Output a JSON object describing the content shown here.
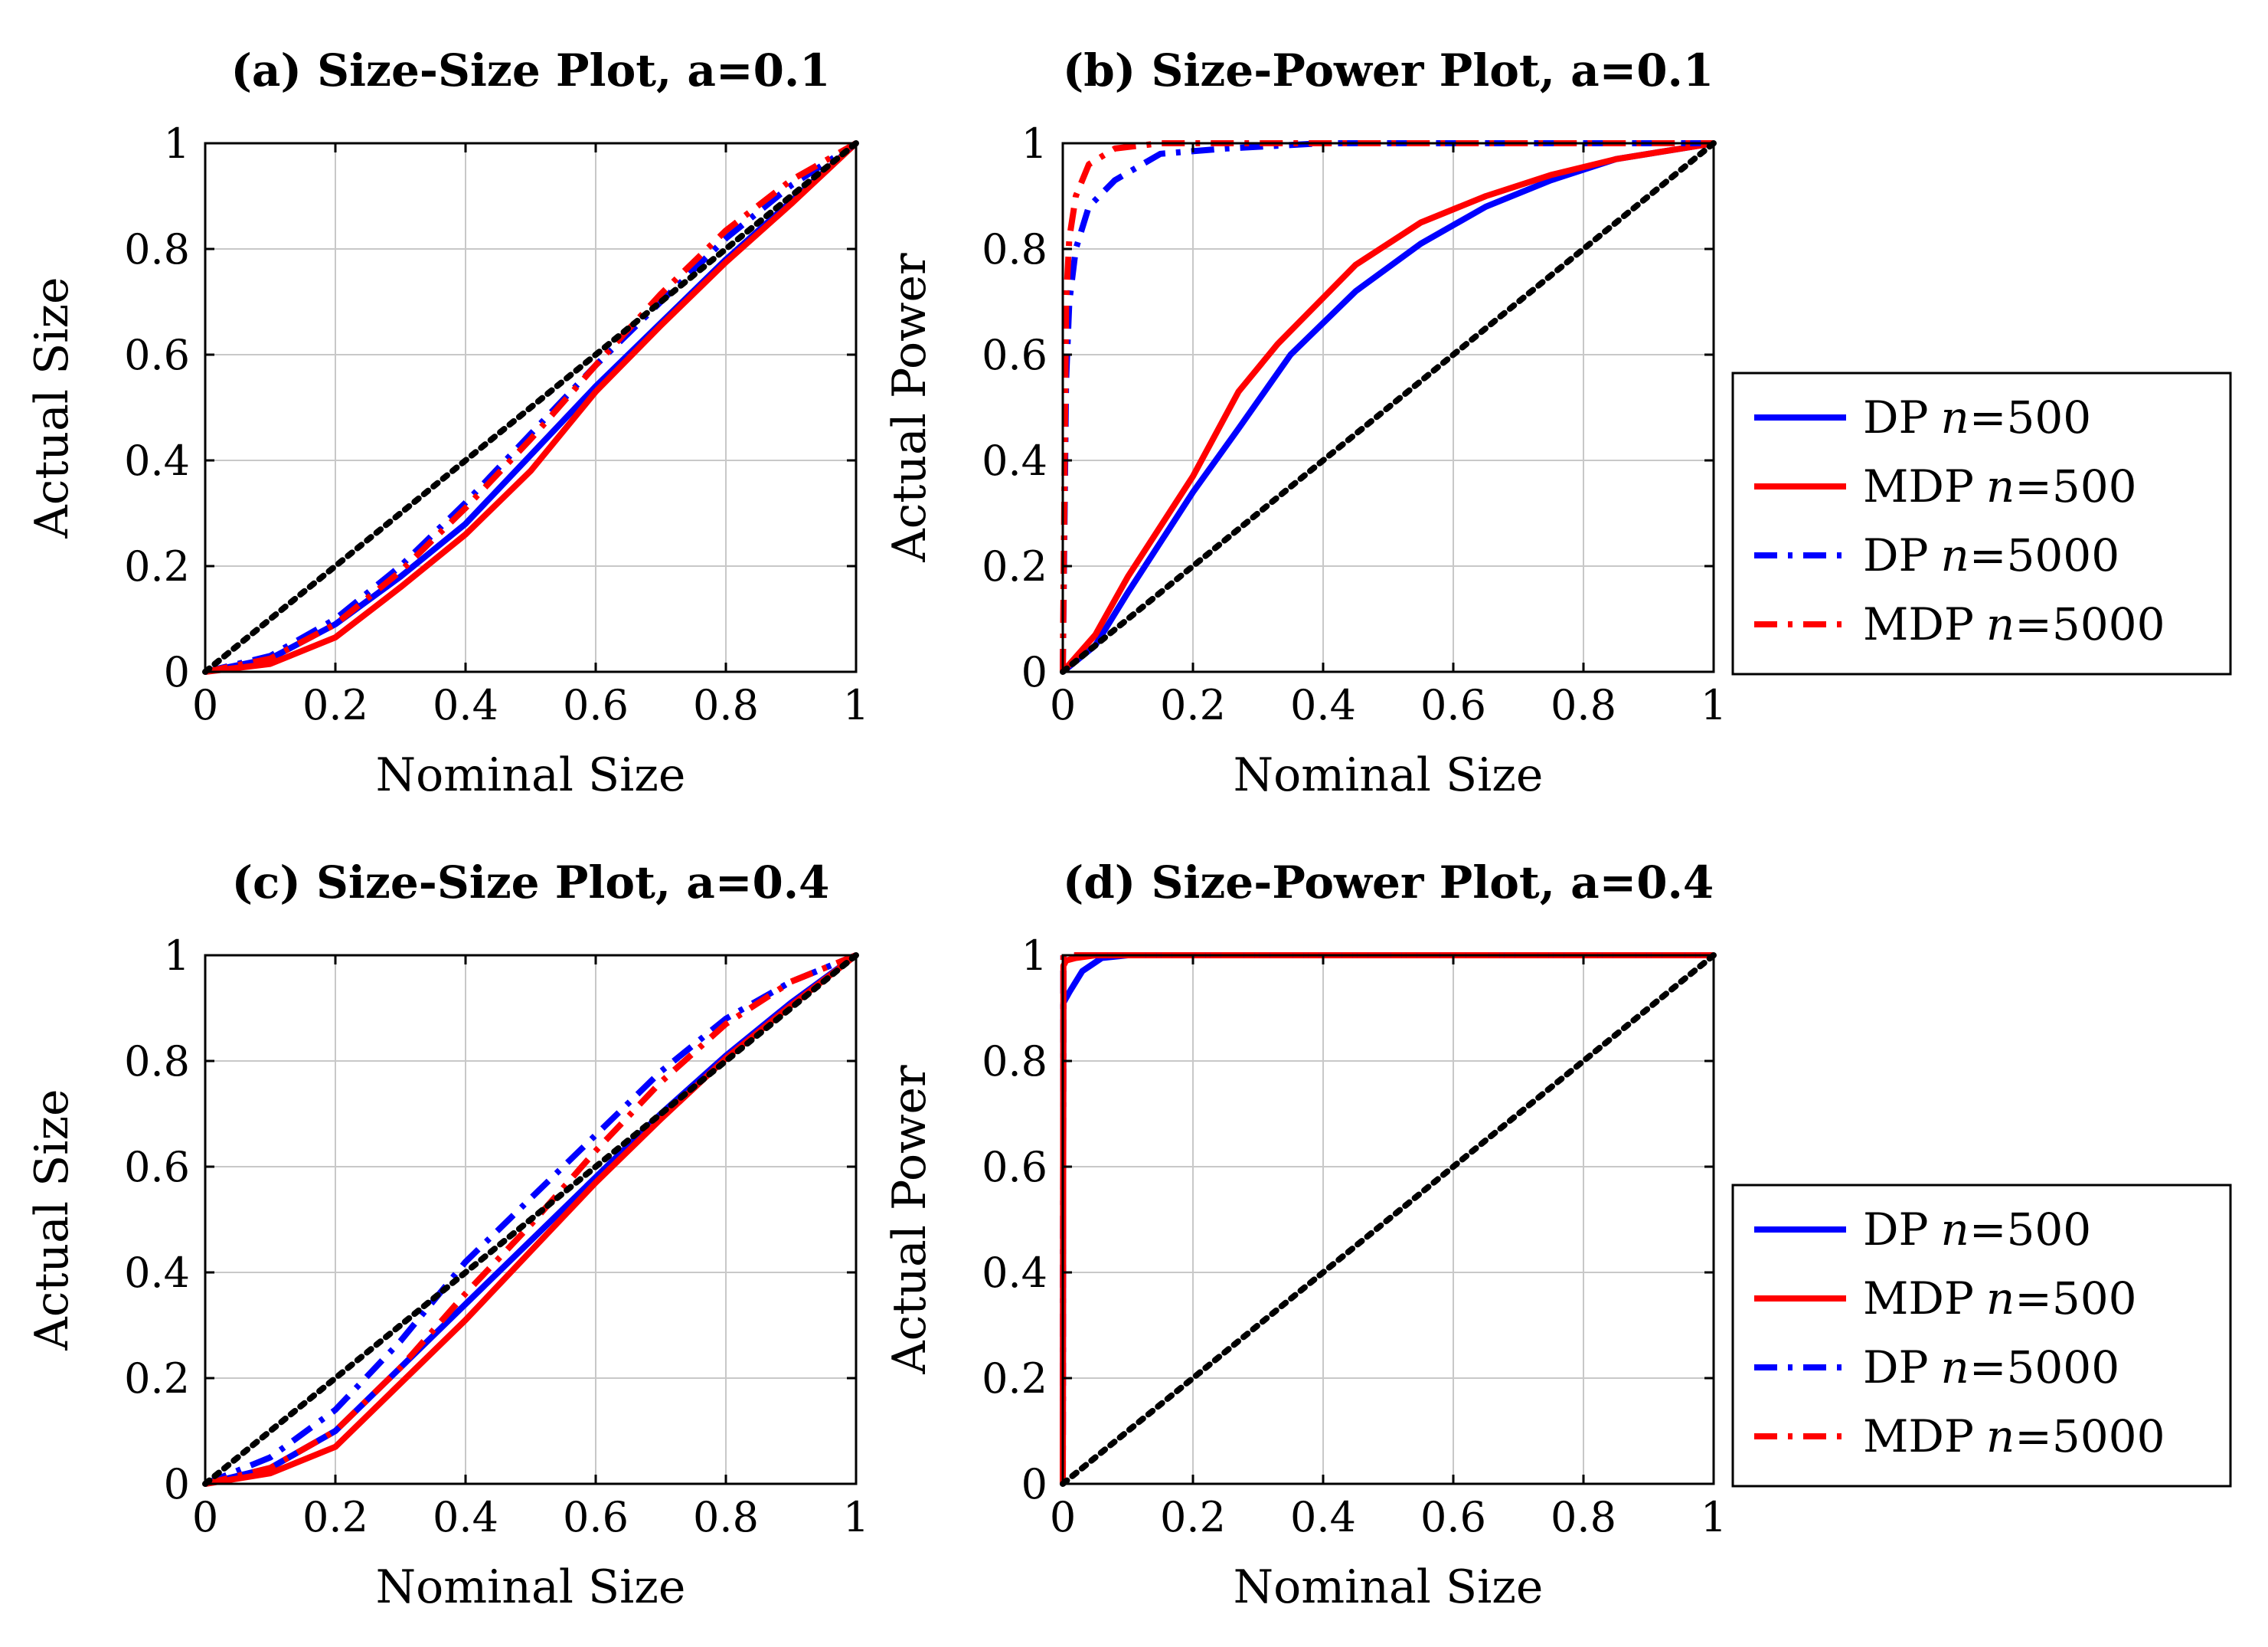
{
  "figure": {
    "legend_position": "right of right-hand panels"
  },
  "chart_data": [
    {
      "id": "a",
      "type": "line",
      "title": "(a) Size-Size Plot, a=0.1",
      "xlabel": "Nominal Size",
      "ylabel": "Actual Size",
      "xlim": [
        0,
        1
      ],
      "ylim": [
        0,
        1
      ],
      "xticks": [
        "0",
        "0.2",
        "0.4",
        "0.6",
        "0.8",
        "1"
      ],
      "yticks": [
        "0",
        "0.2",
        "0.4",
        "0.6",
        "0.8",
        "1"
      ],
      "legend": null,
      "series": [
        {
          "name": "DP n=500",
          "color": "#0000ff",
          "dash": "solid",
          "x": [
            0,
            0.1,
            0.2,
            0.3,
            0.4,
            0.5,
            0.6,
            0.7,
            0.8,
            0.9,
            1
          ],
          "y": [
            0,
            0.025,
            0.09,
            0.18,
            0.28,
            0.41,
            0.54,
            0.66,
            0.78,
            0.89,
            1
          ]
        },
        {
          "name": "MDP n=500",
          "color": "#ff0000",
          "dash": "solid",
          "x": [
            0,
            0.1,
            0.2,
            0.3,
            0.4,
            0.5,
            0.6,
            0.7,
            0.8,
            0.9,
            1
          ],
          "y": [
            0,
            0.015,
            0.065,
            0.16,
            0.26,
            0.38,
            0.53,
            0.655,
            0.775,
            0.885,
            1
          ]
        },
        {
          "name": "DP n=5000",
          "color": "#0000ff",
          "dash": "dashdot",
          "x": [
            0,
            0.1,
            0.2,
            0.3,
            0.4,
            0.5,
            0.6,
            0.7,
            0.8,
            0.9,
            1
          ],
          "y": [
            0,
            0.03,
            0.1,
            0.2,
            0.32,
            0.45,
            0.58,
            0.7,
            0.82,
            0.92,
            1
          ]
        },
        {
          "name": "MDP n=5000",
          "color": "#ff0000",
          "dash": "dashdot",
          "x": [
            0,
            0.1,
            0.2,
            0.3,
            0.4,
            0.5,
            0.6,
            0.7,
            0.8,
            0.9,
            1
          ],
          "y": [
            0,
            0.025,
            0.09,
            0.19,
            0.31,
            0.44,
            0.58,
            0.715,
            0.835,
            0.93,
            1
          ]
        },
        {
          "name": "45-degree",
          "color": "#000000",
          "dash": "dotted",
          "x": [
            0,
            1
          ],
          "y": [
            0,
            1
          ]
        }
      ]
    },
    {
      "id": "b",
      "type": "line",
      "title": "(b) Size-Power Plot, a=0.1",
      "xlabel": "Nominal Size",
      "ylabel": "Actual Power",
      "xlim": [
        0,
        1
      ],
      "ylim": [
        0,
        1
      ],
      "xticks": [
        "0",
        "0.2",
        "0.4",
        "0.6",
        "0.8",
        "1"
      ],
      "yticks": [
        "0",
        "0.2",
        "0.4",
        "0.6",
        "0.8",
        "1"
      ],
      "legend": "right",
      "series": [
        {
          "name": "DP n=500",
          "color": "#0000ff",
          "dash": "solid",
          "x": [
            0,
            0.05,
            0.1,
            0.2,
            0.27,
            0.35,
            0.45,
            0.55,
            0.65,
            0.75,
            0.85,
            0.95,
            1
          ],
          "y": [
            0,
            0.05,
            0.15,
            0.34,
            0.46,
            0.6,
            0.72,
            0.81,
            0.88,
            0.93,
            0.97,
            0.99,
            1
          ]
        },
        {
          "name": "MDP n=500",
          "color": "#ff0000",
          "dash": "solid",
          "x": [
            0,
            0.05,
            0.1,
            0.2,
            0.27,
            0.33,
            0.45,
            0.55,
            0.65,
            0.75,
            0.85,
            0.95,
            1
          ],
          "y": [
            0,
            0.07,
            0.18,
            0.37,
            0.53,
            0.62,
            0.77,
            0.85,
            0.9,
            0.94,
            0.97,
            0.99,
            1
          ]
        },
        {
          "name": "DP n=5000",
          "color": "#0000ff",
          "dash": "dashdot",
          "x": [
            0,
            0.005,
            0.01,
            0.02,
            0.04,
            0.08,
            0.15,
            0.25,
            0.4,
            0.6,
            0.8,
            1
          ],
          "y": [
            0,
            0.55,
            0.7,
            0.8,
            0.88,
            0.93,
            0.98,
            0.99,
            1,
            1,
            1,
            1
          ]
        },
        {
          "name": "MDP n=5000",
          "color": "#ff0000",
          "dash": "dashdot",
          "x": [
            0,
            0.005,
            0.01,
            0.02,
            0.04,
            0.08,
            0.15,
            0.3,
            0.5,
            0.7,
            1
          ],
          "y": [
            0,
            0.7,
            0.82,
            0.9,
            0.96,
            0.99,
            1,
            1,
            1,
            1,
            1
          ]
        },
        {
          "name": "45-degree",
          "color": "#000000",
          "dash": "dotted",
          "x": [
            0,
            1
          ],
          "y": [
            0,
            1
          ]
        }
      ]
    },
    {
      "id": "c",
      "type": "line",
      "title": "(c) Size-Size Plot, a=0.4",
      "xlabel": "Nominal Size",
      "ylabel": "Actual Size",
      "xlim": [
        0,
        1
      ],
      "ylim": [
        0,
        1
      ],
      "xticks": [
        "0",
        "0.2",
        "0.4",
        "0.6",
        "0.8",
        "1"
      ],
      "yticks": [
        "0",
        "0.2",
        "0.4",
        "0.6",
        "0.8",
        "1"
      ],
      "legend": null,
      "series": [
        {
          "name": "DP n=500",
          "color": "#0000ff",
          "dash": "solid",
          "x": [
            0,
            0.1,
            0.2,
            0.3,
            0.4,
            0.5,
            0.6,
            0.7,
            0.8,
            0.9,
            1
          ],
          "y": [
            0,
            0.03,
            0.1,
            0.22,
            0.34,
            0.46,
            0.58,
            0.7,
            0.81,
            0.91,
            1
          ]
        },
        {
          "name": "MDP n=500",
          "color": "#ff0000",
          "dash": "solid",
          "x": [
            0,
            0.1,
            0.2,
            0.3,
            0.4,
            0.5,
            0.6,
            0.7,
            0.8,
            0.9,
            1
          ],
          "y": [
            0,
            0.02,
            0.07,
            0.19,
            0.31,
            0.44,
            0.57,
            0.69,
            0.805,
            0.905,
            1
          ]
        },
        {
          "name": "DP n=5000",
          "color": "#0000ff",
          "dash": "dashdot",
          "x": [
            0,
            0.1,
            0.2,
            0.3,
            0.4,
            0.5,
            0.6,
            0.7,
            0.8,
            0.9,
            1
          ],
          "y": [
            0,
            0.05,
            0.14,
            0.27,
            0.42,
            0.54,
            0.66,
            0.78,
            0.88,
            0.95,
            1
          ]
        },
        {
          "name": "MDP n=5000",
          "color": "#ff0000",
          "dash": "dashdot",
          "x": [
            0,
            0.1,
            0.2,
            0.3,
            0.4,
            0.5,
            0.6,
            0.7,
            0.8,
            0.9,
            1
          ],
          "y": [
            0,
            0.03,
            0.1,
            0.22,
            0.36,
            0.49,
            0.63,
            0.76,
            0.87,
            0.95,
            1
          ]
        },
        {
          "name": "45-degree",
          "color": "#000000",
          "dash": "dotted",
          "x": [
            0,
            1
          ],
          "y": [
            0,
            1
          ]
        }
      ]
    },
    {
      "id": "d",
      "type": "line",
      "title": "(d) Size-Power Plot, a=0.4",
      "xlabel": "Nominal Size",
      "ylabel": "Actual Power",
      "xlim": [
        0,
        1
      ],
      "ylim": [
        0,
        1
      ],
      "xticks": [
        "0",
        "0.2",
        "0.4",
        "0.6",
        "0.8",
        "1"
      ],
      "yticks": [
        "0",
        "0.2",
        "0.4",
        "0.6",
        "0.8",
        "1"
      ],
      "legend": "right",
      "series": [
        {
          "name": "DP n=500",
          "color": "#0000ff",
          "dash": "solid",
          "x": [
            0,
            0.001,
            0.01,
            0.03,
            0.06,
            0.1,
            0.3,
            0.6,
            1
          ],
          "y": [
            0,
            0.91,
            0.93,
            0.97,
            0.995,
            1,
            1,
            1,
            1
          ]
        },
        {
          "name": "MDP n=500",
          "color": "#ff0000",
          "dash": "solid",
          "x": [
            0,
            0.001,
            0.005,
            0.02,
            0.05,
            0.1,
            0.5,
            1
          ],
          "y": [
            0,
            0.98,
            0.99,
            0.995,
            1,
            1,
            1,
            1
          ]
        },
        {
          "name": "DP n=5000",
          "color": "#0000ff",
          "dash": "dashdot",
          "x": [
            0,
            0.001,
            0.01,
            1
          ],
          "y": [
            0,
            1,
            1,
            1
          ]
        },
        {
          "name": "MDP n=5000",
          "color": "#ff0000",
          "dash": "dashdot",
          "x": [
            0,
            0.001,
            0.01,
            1
          ],
          "y": [
            0,
            1,
            1,
            1
          ]
        },
        {
          "name": "45-degree",
          "color": "#000000",
          "dash": "dotted",
          "x": [
            0,
            1
          ],
          "y": [
            0,
            1
          ]
        }
      ]
    }
  ],
  "legend": {
    "entries": [
      {
        "label": "DP",
        "n_var": "n",
        "n_value": "=500",
        "color": "#0000ff",
        "dash": "solid"
      },
      {
        "label": "MDP",
        "n_var": "n",
        "n_value": "=500",
        "color": "#ff0000",
        "dash": "solid"
      },
      {
        "label": "DP",
        "n_var": "n",
        "n_value": "=5000",
        "color": "#0000ff",
        "dash": "dashdot"
      },
      {
        "label": "MDP",
        "n_var": "n",
        "n_value": "=5000",
        "color": "#ff0000",
        "dash": "dashdot"
      }
    ]
  }
}
